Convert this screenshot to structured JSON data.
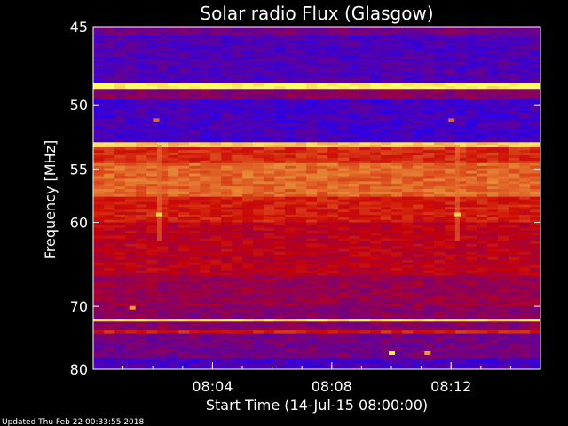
{
  "chart_data": {
    "type": "heatmap",
    "title": "Solar radio Flux (Glasgow)",
    "xlabel": "Start Time (14-Jul-15 08:00:00)",
    "ylabel": "Frequency [MHz]",
    "footer": "Updated Thu Feb 22 00:33:55 2018",
    "x_unit": "minutes after 08:00",
    "xlim": [
      0,
      15
    ],
    "ylim": [
      45,
      80
    ],
    "y_scale": "reciprocal",
    "x_ticks": [
      {
        "value": 4,
        "label": "08:04"
      },
      {
        "value": 8,
        "label": "08:08"
      },
      {
        "value": 12,
        "label": "08:12"
      }
    ],
    "y_ticks": [
      {
        "value": 45,
        "label": "45"
      },
      {
        "value": 50,
        "label": "50"
      },
      {
        "value": 55,
        "label": "55"
      },
      {
        "value": 60,
        "label": "60"
      },
      {
        "value": 70,
        "label": "70"
      },
      {
        "value": 80,
        "label": "80"
      }
    ],
    "colormap": {
      "low": "#1a00ff",
      "mid": "#cc0000",
      "high": "#ffff66"
    },
    "frequency_bands": [
      {
        "from": 45,
        "to": 45.5,
        "level": 0.25
      },
      {
        "from": 45.5,
        "to": 48.5,
        "level": 0.15
      },
      {
        "from": 48.5,
        "to": 48.9,
        "level": 1.0
      },
      {
        "from": 48.9,
        "to": 49.6,
        "level": 0.3
      },
      {
        "from": 49.6,
        "to": 52.8,
        "level": 0.12
      },
      {
        "from": 52.8,
        "to": 53.2,
        "level": 0.9
      },
      {
        "from": 53.2,
        "to": 54.5,
        "level": 0.58
      },
      {
        "from": 54.5,
        "to": 57.5,
        "level": 0.7
      },
      {
        "from": 57.5,
        "to": 60,
        "level": 0.55
      },
      {
        "from": 60,
        "to": 66,
        "level": 0.45
      },
      {
        "from": 66,
        "to": 70,
        "level": 0.35
      },
      {
        "from": 70,
        "to": 71.8,
        "level": 0.3
      },
      {
        "from": 71.8,
        "to": 72.2,
        "level": 0.95
      },
      {
        "from": 72.2,
        "to": 73.5,
        "level": 0.3
      },
      {
        "from": 73.5,
        "to": 74,
        "level": 0.55
      },
      {
        "from": 74,
        "to": 78,
        "level": 0.25
      },
      {
        "from": 78,
        "to": 80,
        "level": 0.12
      }
    ],
    "features": [
      {
        "minute": 2.2,
        "freq": 59.2,
        "level": 0.9
      },
      {
        "minute": 12.2,
        "freq": 59.2,
        "level": 0.9
      },
      {
        "minute": 2.1,
        "freq": 51.1,
        "level": 0.7
      },
      {
        "minute": 12.0,
        "freq": 51.1,
        "level": 0.7
      },
      {
        "minute": 1.3,
        "freq": 70.2,
        "level": 0.8
      },
      {
        "minute": 10.0,
        "freq": 77.2,
        "level": 0.95
      },
      {
        "minute": 11.2,
        "freq": 77.2,
        "level": 0.8
      }
    ]
  }
}
